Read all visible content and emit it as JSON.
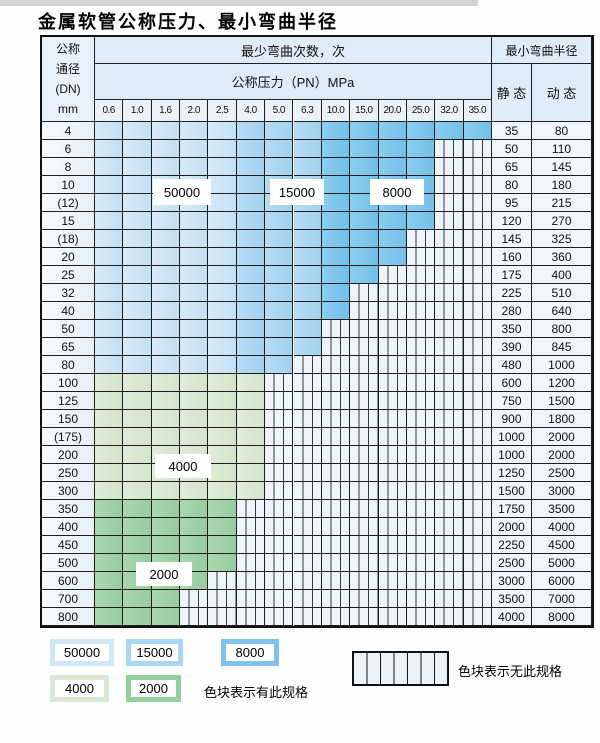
{
  "title": "金属软管公称压力、最小弯曲半径",
  "header": {
    "dn_lines": [
      "公称",
      "通径",
      "(DN)",
      "mm"
    ],
    "bend_cycles_label": "最少弯曲次数，次",
    "pressure_label": "公称压力（PN）MPa",
    "min_radius_label": "最小弯曲半径",
    "static_label": "静 态",
    "dynamic_label": "动 态"
  },
  "chart_data": {
    "type": "table",
    "pressure_columns": [
      "0.6",
      "1.0",
      "1.6",
      "2.0",
      "2.5",
      "4.0",
      "5.0",
      "6.3",
      "10.0",
      "15.0",
      "20.0",
      "25.0",
      "32.0",
      "35.0"
    ],
    "cycle_regions_blue": [
      {
        "cycles": 50000,
        "first_col": 1,
        "last_col": 5
      },
      {
        "cycles": 15000,
        "first_col": 6,
        "last_col": 8
      },
      {
        "cycles": 8000,
        "first_col": 9,
        "last_col": 14
      }
    ],
    "cycle_regions_green": [
      {
        "cycles": 4000,
        "dn_from": "100",
        "dn_to": "300"
      },
      {
        "cycles": 2000,
        "dn_from": "350",
        "dn_to": "800"
      }
    ],
    "rows": [
      {
        "dn": "4",
        "scheme": "blue",
        "last_col": 14,
        "static": 35,
        "dynamic": 80
      },
      {
        "dn": "6",
        "scheme": "blue",
        "last_col": 12,
        "static": 50,
        "dynamic": 110
      },
      {
        "dn": "8",
        "scheme": "blue",
        "last_col": 12,
        "static": 65,
        "dynamic": 145
      },
      {
        "dn": "10",
        "scheme": "blue",
        "last_col": 12,
        "static": 80,
        "dynamic": 180
      },
      {
        "dn": "(12)",
        "scheme": "blue",
        "last_col": 12,
        "static": 95,
        "dynamic": 215
      },
      {
        "dn": "15",
        "scheme": "blue",
        "last_col": 12,
        "static": 120,
        "dynamic": 270
      },
      {
        "dn": "(18)",
        "scheme": "blue",
        "last_col": 11,
        "static": 145,
        "dynamic": 325
      },
      {
        "dn": "20",
        "scheme": "blue",
        "last_col": 11,
        "static": 160,
        "dynamic": 360
      },
      {
        "dn": "25",
        "scheme": "blue",
        "last_col": 10,
        "static": 175,
        "dynamic": 400
      },
      {
        "dn": "32",
        "scheme": "blue",
        "last_col": 9,
        "static": 225,
        "dynamic": 510
      },
      {
        "dn": "40",
        "scheme": "blue",
        "last_col": 9,
        "static": 280,
        "dynamic": 640
      },
      {
        "dn": "50",
        "scheme": "blue",
        "last_col": 8,
        "static": 350,
        "dynamic": 800
      },
      {
        "dn": "65",
        "scheme": "blue",
        "last_col": 8,
        "static": 390,
        "dynamic": 845
      },
      {
        "dn": "80",
        "scheme": "blue",
        "last_col": 7,
        "static": 480,
        "dynamic": 1000
      },
      {
        "dn": "100",
        "scheme": "g4000",
        "last_col": 6,
        "static": 600,
        "dynamic": 1200
      },
      {
        "dn": "125",
        "scheme": "g4000",
        "last_col": 6,
        "static": 750,
        "dynamic": 1500
      },
      {
        "dn": "150",
        "scheme": "g4000",
        "last_col": 6,
        "static": 900,
        "dynamic": 1800
      },
      {
        "dn": "(175)",
        "scheme": "g4000",
        "last_col": 6,
        "static": 1000,
        "dynamic": 2000
      },
      {
        "dn": "200",
        "scheme": "g4000",
        "last_col": 6,
        "static": 1000,
        "dynamic": 2000
      },
      {
        "dn": "250",
        "scheme": "g4000",
        "last_col": 6,
        "static": 1250,
        "dynamic": 2500
      },
      {
        "dn": "300",
        "scheme": "g4000",
        "last_col": 6,
        "static": 1500,
        "dynamic": 3000
      },
      {
        "dn": "350",
        "scheme": "g2000",
        "last_col": 5,
        "static": 1750,
        "dynamic": 3500
      },
      {
        "dn": "400",
        "scheme": "g2000",
        "last_col": 5,
        "static": 2000,
        "dynamic": 4000
      },
      {
        "dn": "450",
        "scheme": "g2000",
        "last_col": 5,
        "static": 2250,
        "dynamic": 4500
      },
      {
        "dn": "500",
        "scheme": "g2000",
        "last_col": 5,
        "static": 2500,
        "dynamic": 5000
      },
      {
        "dn": "600",
        "scheme": "g2000",
        "last_col": 4,
        "static": 3000,
        "dynamic": 6000
      },
      {
        "dn": "700",
        "scheme": "g2000",
        "last_col": 3,
        "static": 3500,
        "dynamic": 7000
      },
      {
        "dn": "800",
        "scheme": "g2000",
        "last_col": 3,
        "static": 4000,
        "dynamic": 8000
      }
    ],
    "overlay_labels": [
      "50000",
      "15000",
      "8000",
      "4000",
      "2000"
    ]
  },
  "legend": {
    "items": [
      {
        "label": "50000",
        "color": "#cfe7f7"
      },
      {
        "label": "15000",
        "color": "#a9d6f2"
      },
      {
        "label": "8000",
        "color": "#7fc3ec"
      },
      {
        "label": "4000",
        "color": "#d9ead2"
      },
      {
        "label": "2000",
        "color": "#93cf9c"
      }
    ],
    "has_spec_text": "色块表示有此规格",
    "no_spec_text": "色块表示无此规格"
  },
  "colors": {
    "cycles_50000": "#cfe7f7",
    "cycles_15000": "#a9d6f2",
    "cycles_8000": "#7fc3ec",
    "cycles_4000": "#d9ead2",
    "cycles_2000": "#93cf9c",
    "no_spec_bg": "#edf4fb",
    "grid_line": "#1d1d1d",
    "header_bg": "#ddecf7"
  }
}
